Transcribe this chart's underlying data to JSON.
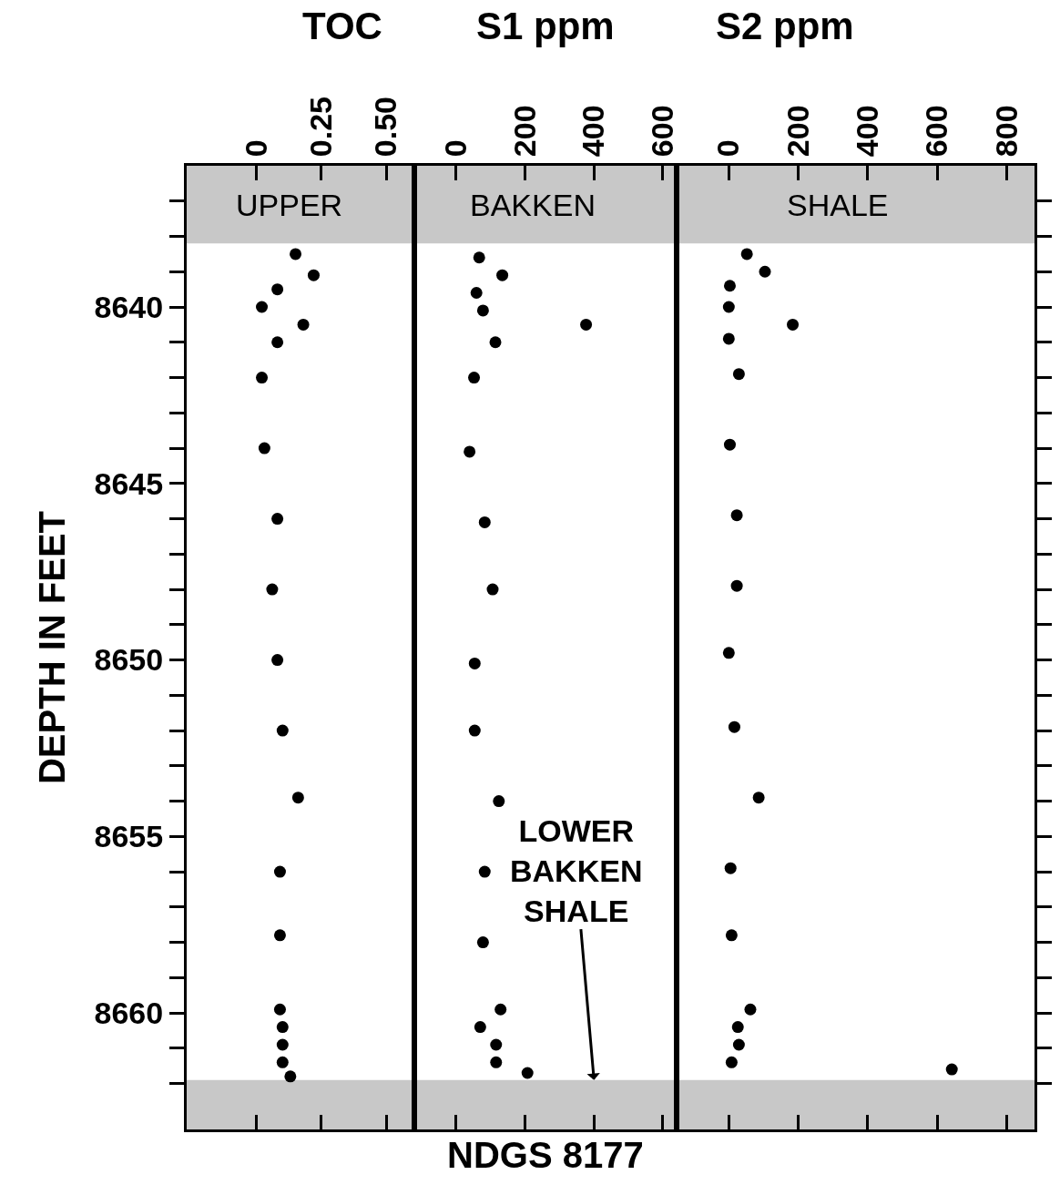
{
  "chart_data": [
    {
      "type": "scatter",
      "title": "TOC",
      "ylabel": "DEPTH IN FEET",
      "marker": "circle",
      "grid": false,
      "xlim": [
        -0.27,
        0.61
      ],
      "xticks": [
        0,
        0.25,
        {
          "value": 0.5,
          "label": "0.50"
        }
      ],
      "ylim": [
        8663.3,
        8636
      ],
      "yticks": [
        {
          "value": 8637,
          "label": null
        },
        {
          "value": 8638,
          "label": null
        },
        {
          "value": 8639,
          "label": null
        },
        8640,
        {
          "value": 8641,
          "label": null
        },
        {
          "value": 8642,
          "label": null
        },
        {
          "value": 8643,
          "label": null
        },
        {
          "value": 8644,
          "label": null
        },
        8645,
        {
          "value": 8646,
          "label": null
        },
        {
          "value": 8647,
          "label": null
        },
        {
          "value": 8648,
          "label": null
        },
        {
          "value": 8649,
          "label": null
        },
        8650,
        {
          "value": 8651,
          "label": null
        },
        {
          "value": 8652,
          "label": null
        },
        {
          "value": 8653,
          "label": null
        },
        {
          "value": 8654,
          "label": null
        },
        8655,
        {
          "value": 8656,
          "label": null
        },
        {
          "value": 8657,
          "label": null
        },
        {
          "value": 8658,
          "label": null
        },
        {
          "value": 8659,
          "label": null
        },
        8660,
        {
          "value": 8661,
          "label": null
        },
        {
          "value": 8662,
          "label": null
        }
      ],
      "bands": [
        {
          "axis": "y",
          "from": 8636,
          "to": 8638.2,
          "label": "UPPER",
          "color": "#c8c8c8"
        },
        {
          "axis": "y",
          "from": 8661.9,
          "to": 8663.3,
          "color": "#c8c8c8"
        }
      ],
      "series": [
        {
          "color": "#000000",
          "x": [
            0.15,
            0.22,
            0.08,
            0.02,
            0.18,
            0.08,
            0.02,
            0.03,
            0.08,
            0.06,
            0.08,
            0.1,
            0.16,
            0.09,
            0.09,
            0.09,
            0.1,
            0.1,
            0.1,
            0.13
          ],
          "values": [
            8638.5,
            8639.1,
            8639.5,
            8640.0,
            8640.5,
            8641.0,
            8642.0,
            8644.0,
            8646.0,
            8648.0,
            8650.0,
            8652.0,
            8653.9,
            8656.0,
            8657.8,
            8659.9,
            8660.4,
            8660.9,
            8661.4,
            8661.8
          ]
        }
      ]
    },
    {
      "type": "scatter",
      "title": "S1 ppm",
      "marker": "circle",
      "grid": false,
      "tick_labels": "x",
      "xlim": [
        -120,
        640
      ],
      "xticks": [
        0,
        200,
        400,
        600
      ],
      "ylim": [
        8663.3,
        8636
      ],
      "bands": [
        {
          "axis": "y",
          "from": 8636,
          "to": 8638.2,
          "label": "BAKKEN",
          "color": "#c8c8c8"
        },
        {
          "axis": "y",
          "from": 8661.9,
          "to": 8663.3,
          "color": "#c8c8c8"
        }
      ],
      "annotations": [
        {
          "text": "LOWER\nBAKKEN\nSHALE",
          "x": 400,
          "y": 8661.9
        },
        "NDGS 8177"
      ],
      "series": [
        {
          "color": "#000000",
          "x": [
            67,
            134,
            59,
            78,
            377,
            114,
            52,
            39,
            83,
            106,
            54,
            54,
            124,
            83,
            78,
            129,
            70,
            116,
            116,
            207
          ],
          "values": [
            8638.6,
            8639.1,
            8639.6,
            8640.1,
            8640.5,
            8641.0,
            8642.0,
            8644.1,
            8646.1,
            8648.0,
            8650.1,
            8652.0,
            8654.0,
            8656.0,
            8658.0,
            8659.9,
            8660.4,
            8660.9,
            8661.4,
            8661.7
          ]
        }
      ]
    },
    {
      "type": "scatter",
      "title": "S2 ppm",
      "marker": "circle",
      "grid": false,
      "tick_labels": "x",
      "xlim": [
        -150,
        880
      ],
      "xticks": [
        0,
        200,
        400,
        600,
        800
      ],
      "ylim": [
        8663.3,
        8636
      ],
      "yticks": [
        8637,
        8638,
        8639,
        8640,
        8641,
        8642,
        8643,
        8644,
        8645,
        8646,
        8647,
        8648,
        8649,
        8650,
        8651,
        8652,
        8653,
        8654,
        8655,
        8656,
        8657,
        8658,
        8659,
        8660,
        8661,
        8662
      ],
      "bands": [
        {
          "axis": "y",
          "from": 8636,
          "to": 8638.2,
          "label": "SHALE",
          "color": "#c8c8c8"
        },
        {
          "axis": "y",
          "from": 8661.9,
          "to": 8663.3,
          "color": "#c8c8c8"
        }
      ],
      "series": [
        {
          "color": "#000000",
          "x": [
            52,
            104,
            3,
            0,
            184,
            0,
            29,
            3,
            23,
            23,
            0,
            16,
            86,
            5,
            8,
            62,
            26,
            29,
            8,
            642
          ],
          "values": [
            8638.5,
            8639.0,
            8639.4,
            8640.0,
            8640.5,
            8640.9,
            8641.9,
            8643.9,
            8645.9,
            8647.9,
            8649.8,
            8651.9,
            8653.9,
            8655.9,
            8657.8,
            8659.9,
            8660.4,
            8660.9,
            8661.4,
            8661.6
          ]
        }
      ]
    }
  ]
}
